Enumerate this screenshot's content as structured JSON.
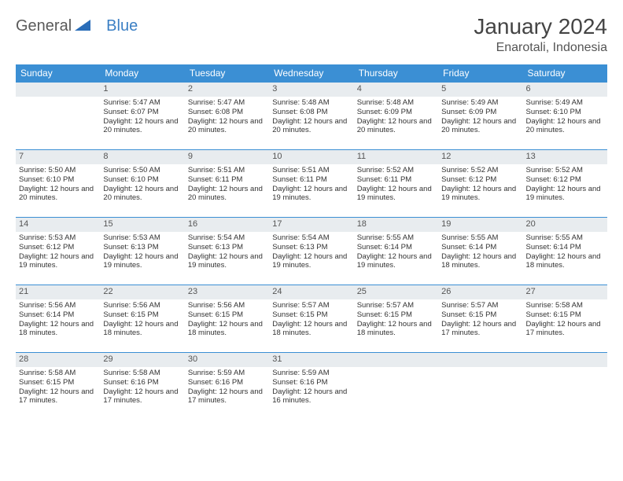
{
  "brand": {
    "part1": "General",
    "part2": "Blue"
  },
  "title": "January 2024",
  "location": "Enarotali, Indonesia",
  "colors": {
    "header_bg": "#3b8fd4",
    "header_text": "#ffffff",
    "daynum_bg": "#e8ecef",
    "border": "#3b8fd4",
    "text": "#333333",
    "brand_gray": "#5a5a5a",
    "brand_blue": "#3b7fc4"
  },
  "weekdays": [
    "Sunday",
    "Monday",
    "Tuesday",
    "Wednesday",
    "Thursday",
    "Friday",
    "Saturday"
  ],
  "weeks": [
    [
      null,
      {
        "n": "1",
        "sr": "Sunrise: 5:47 AM",
        "ss": "Sunset: 6:07 PM",
        "dl": "Daylight: 12 hours and 20 minutes."
      },
      {
        "n": "2",
        "sr": "Sunrise: 5:47 AM",
        "ss": "Sunset: 6:08 PM",
        "dl": "Daylight: 12 hours and 20 minutes."
      },
      {
        "n": "3",
        "sr": "Sunrise: 5:48 AM",
        "ss": "Sunset: 6:08 PM",
        "dl": "Daylight: 12 hours and 20 minutes."
      },
      {
        "n": "4",
        "sr": "Sunrise: 5:48 AM",
        "ss": "Sunset: 6:09 PM",
        "dl": "Daylight: 12 hours and 20 minutes."
      },
      {
        "n": "5",
        "sr": "Sunrise: 5:49 AM",
        "ss": "Sunset: 6:09 PM",
        "dl": "Daylight: 12 hours and 20 minutes."
      },
      {
        "n": "6",
        "sr": "Sunrise: 5:49 AM",
        "ss": "Sunset: 6:10 PM",
        "dl": "Daylight: 12 hours and 20 minutes."
      }
    ],
    [
      {
        "n": "7",
        "sr": "Sunrise: 5:50 AM",
        "ss": "Sunset: 6:10 PM",
        "dl": "Daylight: 12 hours and 20 minutes."
      },
      {
        "n": "8",
        "sr": "Sunrise: 5:50 AM",
        "ss": "Sunset: 6:10 PM",
        "dl": "Daylight: 12 hours and 20 minutes."
      },
      {
        "n": "9",
        "sr": "Sunrise: 5:51 AM",
        "ss": "Sunset: 6:11 PM",
        "dl": "Daylight: 12 hours and 20 minutes."
      },
      {
        "n": "10",
        "sr": "Sunrise: 5:51 AM",
        "ss": "Sunset: 6:11 PM",
        "dl": "Daylight: 12 hours and 19 minutes."
      },
      {
        "n": "11",
        "sr": "Sunrise: 5:52 AM",
        "ss": "Sunset: 6:11 PM",
        "dl": "Daylight: 12 hours and 19 minutes."
      },
      {
        "n": "12",
        "sr": "Sunrise: 5:52 AM",
        "ss": "Sunset: 6:12 PM",
        "dl": "Daylight: 12 hours and 19 minutes."
      },
      {
        "n": "13",
        "sr": "Sunrise: 5:52 AM",
        "ss": "Sunset: 6:12 PM",
        "dl": "Daylight: 12 hours and 19 minutes."
      }
    ],
    [
      {
        "n": "14",
        "sr": "Sunrise: 5:53 AM",
        "ss": "Sunset: 6:12 PM",
        "dl": "Daylight: 12 hours and 19 minutes."
      },
      {
        "n": "15",
        "sr": "Sunrise: 5:53 AM",
        "ss": "Sunset: 6:13 PM",
        "dl": "Daylight: 12 hours and 19 minutes."
      },
      {
        "n": "16",
        "sr": "Sunrise: 5:54 AM",
        "ss": "Sunset: 6:13 PM",
        "dl": "Daylight: 12 hours and 19 minutes."
      },
      {
        "n": "17",
        "sr": "Sunrise: 5:54 AM",
        "ss": "Sunset: 6:13 PM",
        "dl": "Daylight: 12 hours and 19 minutes."
      },
      {
        "n": "18",
        "sr": "Sunrise: 5:55 AM",
        "ss": "Sunset: 6:14 PM",
        "dl": "Daylight: 12 hours and 19 minutes."
      },
      {
        "n": "19",
        "sr": "Sunrise: 5:55 AM",
        "ss": "Sunset: 6:14 PM",
        "dl": "Daylight: 12 hours and 18 minutes."
      },
      {
        "n": "20",
        "sr": "Sunrise: 5:55 AM",
        "ss": "Sunset: 6:14 PM",
        "dl": "Daylight: 12 hours and 18 minutes."
      }
    ],
    [
      {
        "n": "21",
        "sr": "Sunrise: 5:56 AM",
        "ss": "Sunset: 6:14 PM",
        "dl": "Daylight: 12 hours and 18 minutes."
      },
      {
        "n": "22",
        "sr": "Sunrise: 5:56 AM",
        "ss": "Sunset: 6:15 PM",
        "dl": "Daylight: 12 hours and 18 minutes."
      },
      {
        "n": "23",
        "sr": "Sunrise: 5:56 AM",
        "ss": "Sunset: 6:15 PM",
        "dl": "Daylight: 12 hours and 18 minutes."
      },
      {
        "n": "24",
        "sr": "Sunrise: 5:57 AM",
        "ss": "Sunset: 6:15 PM",
        "dl": "Daylight: 12 hours and 18 minutes."
      },
      {
        "n": "25",
        "sr": "Sunrise: 5:57 AM",
        "ss": "Sunset: 6:15 PM",
        "dl": "Daylight: 12 hours and 18 minutes."
      },
      {
        "n": "26",
        "sr": "Sunrise: 5:57 AM",
        "ss": "Sunset: 6:15 PM",
        "dl": "Daylight: 12 hours and 17 minutes."
      },
      {
        "n": "27",
        "sr": "Sunrise: 5:58 AM",
        "ss": "Sunset: 6:15 PM",
        "dl": "Daylight: 12 hours and 17 minutes."
      }
    ],
    [
      {
        "n": "28",
        "sr": "Sunrise: 5:58 AM",
        "ss": "Sunset: 6:15 PM",
        "dl": "Daylight: 12 hours and 17 minutes."
      },
      {
        "n": "29",
        "sr": "Sunrise: 5:58 AM",
        "ss": "Sunset: 6:16 PM",
        "dl": "Daylight: 12 hours and 17 minutes."
      },
      {
        "n": "30",
        "sr": "Sunrise: 5:59 AM",
        "ss": "Sunset: 6:16 PM",
        "dl": "Daylight: 12 hours and 17 minutes."
      },
      {
        "n": "31",
        "sr": "Sunrise: 5:59 AM",
        "ss": "Sunset: 6:16 PM",
        "dl": "Daylight: 12 hours and 16 minutes."
      },
      null,
      null,
      null
    ]
  ]
}
